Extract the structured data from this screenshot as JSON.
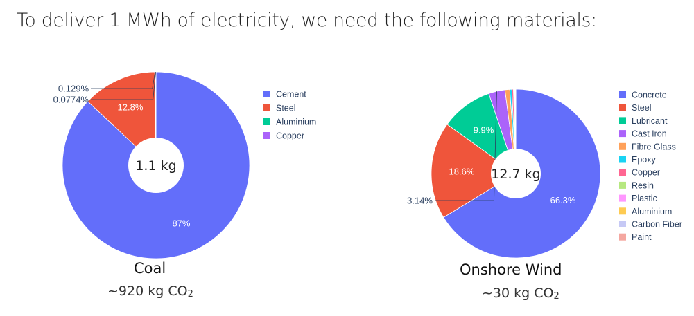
{
  "headline": "To deliver 1 MWh of electricity, we need the following materials:",
  "chart_data": [
    {
      "type": "pie",
      "center_label": "1.1 kg",
      "caption_title": "Coal",
      "caption_sub_prefix": "~920 kg CO",
      "caption_sub_subscript": "2",
      "slices": [
        {
          "label": "Cement",
          "value": 87.0,
          "color": "#636efa",
          "text": "87%"
        },
        {
          "label": "Steel",
          "value": 12.8,
          "color": "#ef553b",
          "text": "12.8%"
        },
        {
          "label": "Aluminium",
          "value": 0.129,
          "color": "#00cc96",
          "text": "0.129%"
        },
        {
          "label": "Copper",
          "value": 0.0774,
          "color": "#ab63fa",
          "text": "0.0774%"
        }
      ]
    },
    {
      "type": "pie",
      "center_label": "12.7 kg",
      "caption_title": "Onshore Wind",
      "caption_sub_prefix": "~30 kg CO",
      "caption_sub_subscript": "2",
      "slices": [
        {
          "label": "Concrete",
          "value": 66.3,
          "color": "#636efa",
          "text": "66.3%"
        },
        {
          "label": "Steel",
          "value": 18.6,
          "color": "#ef553b",
          "text": "18.6%"
        },
        {
          "label": "Lubricant",
          "value": 9.9,
          "color": "#00cc96",
          "text": "9.9%"
        },
        {
          "label": "Cast Iron",
          "value": 3.14,
          "color": "#ab63fa",
          "text": "3.14%"
        },
        {
          "label": "Fibre Glass",
          "value": 0.9,
          "color": "#ffa15a",
          "text": ""
        },
        {
          "label": "Epoxy",
          "value": 0.4,
          "color": "#19d3f3",
          "text": ""
        },
        {
          "label": "Copper",
          "value": 0.3,
          "color": "#ff6692",
          "text": ""
        },
        {
          "label": "Resin",
          "value": 0.2,
          "color": "#b6e880",
          "text": ""
        },
        {
          "label": "Plastic",
          "value": 0.1,
          "color": "#ff97ff",
          "text": ""
        },
        {
          "label": "Aluminium",
          "value": 0.1,
          "color": "#fecb52",
          "text": ""
        },
        {
          "label": "Carbon Fiber",
          "value": 0.03,
          "color": "#c6c9f5",
          "text": ""
        },
        {
          "label": "Paint",
          "value": 0.02,
          "color": "#f4a7a0",
          "text": ""
        }
      ]
    }
  ]
}
